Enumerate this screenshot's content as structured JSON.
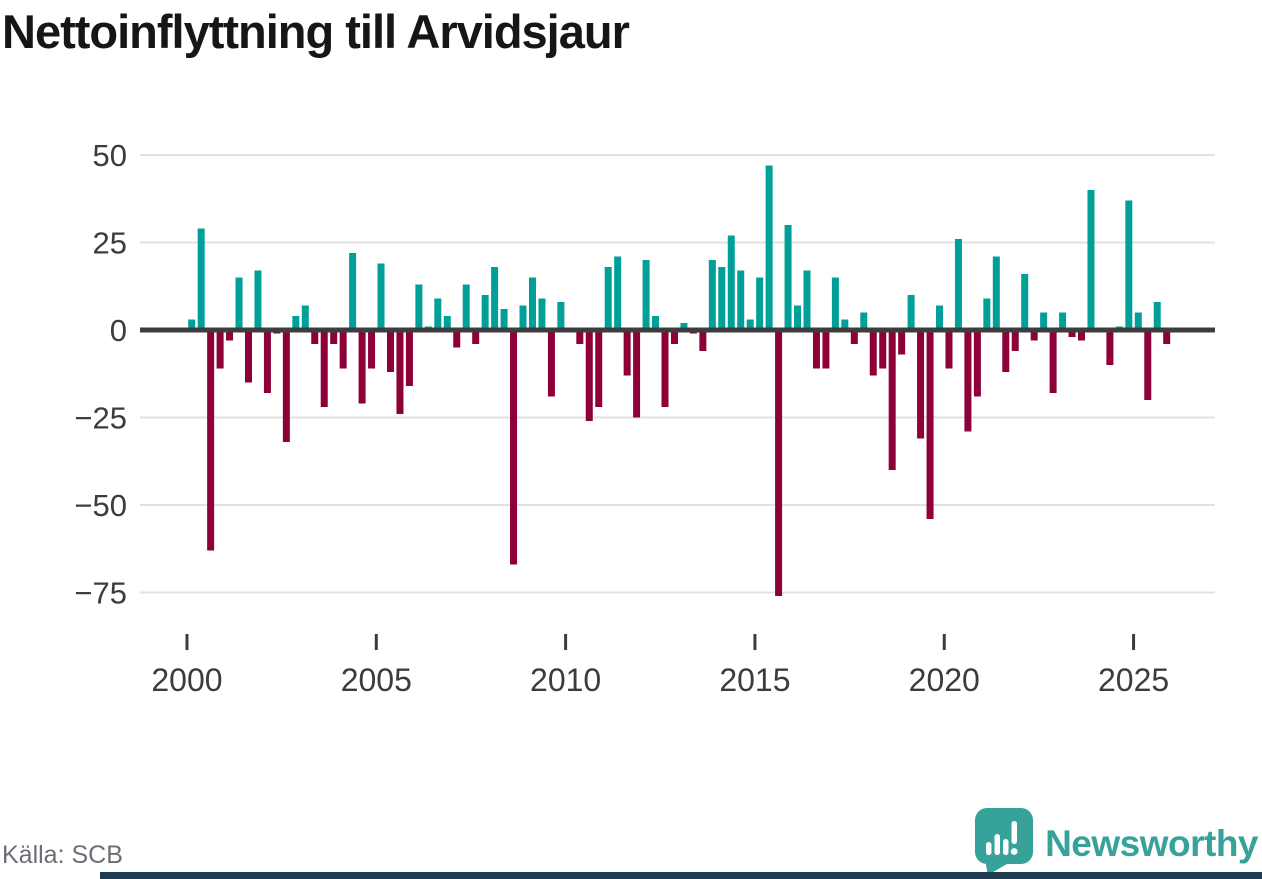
{
  "title": "Nettoinflyttning till Arvidsjaur",
  "source": "Källa: SCB",
  "brand": {
    "name": "Newsworthy",
    "logo_icon": "speech-bubble-bar-chart-icon"
  },
  "colors": {
    "positive": "#00A099",
    "negative": "#8E0038",
    "title_text": "#161616",
    "axis_text": "#3C3C3C",
    "gridline": "#E2E2E2",
    "zero_line": "#3D3D3D",
    "source_text": "#6B6E75",
    "brand_teal": "#36A29A",
    "footer_bar": "#1F3B52",
    "background": "#FFFFFF"
  },
  "chart_data": {
    "type": "bar",
    "title": "Nettoinflyttning till Arvidsjaur",
    "ylabel": "",
    "xlabel": "",
    "frequency": "quarterly",
    "start": "2000-Q1",
    "end": "2025-Q4",
    "unit": "persons (net migration per quarter)",
    "values": [
      3,
      29,
      -63,
      -11,
      -3,
      15,
      -15,
      17,
      -18,
      -1,
      -32,
      4,
      7,
      -4,
      -22,
      -4,
      -11,
      22,
      -21,
      -11,
      19,
      -12,
      -24,
      -16,
      13,
      1,
      9,
      4,
      -5,
      13,
      -4,
      10,
      18,
      6,
      -67,
      7,
      15,
      9,
      -19,
      8,
      0,
      -4,
      -26,
      -22,
      18,
      21,
      -13,
      -25,
      20,
      4,
      -22,
      -4,
      2,
      -1,
      -6,
      20,
      18,
      27,
      17,
      3,
      15,
      47,
      -76,
      30,
      7,
      17,
      -11,
      -11,
      15,
      3,
      -4,
      5,
      -13,
      -11,
      -40,
      -7,
      10,
      -31,
      -54,
      7,
      -11,
      26,
      -29,
      -19,
      9,
      21,
      -12,
      -6,
      16,
      -3,
      5,
      -18,
      5,
      -2,
      -3,
      40,
      0,
      -10,
      1,
      37,
      5,
      -20,
      8,
      -4
    ],
    "xtick_labels": [
      "2000",
      "2005",
      "2010",
      "2015",
      "2020",
      "2025"
    ],
    "xtick_years": [
      2000,
      2005,
      2010,
      2015,
      2020,
      2025
    ],
    "ytick_labels": [
      "50",
      "25",
      "0",
      "−25",
      "−50",
      "−75"
    ],
    "ytick_values": [
      50,
      25,
      0,
      -25,
      -50,
      -75
    ],
    "ylim": [
      -75,
      50
    ],
    "grid": "horizontal",
    "legend": "none",
    "bar_color_positive": "#00A099",
    "bar_color_negative": "#8E0038"
  }
}
